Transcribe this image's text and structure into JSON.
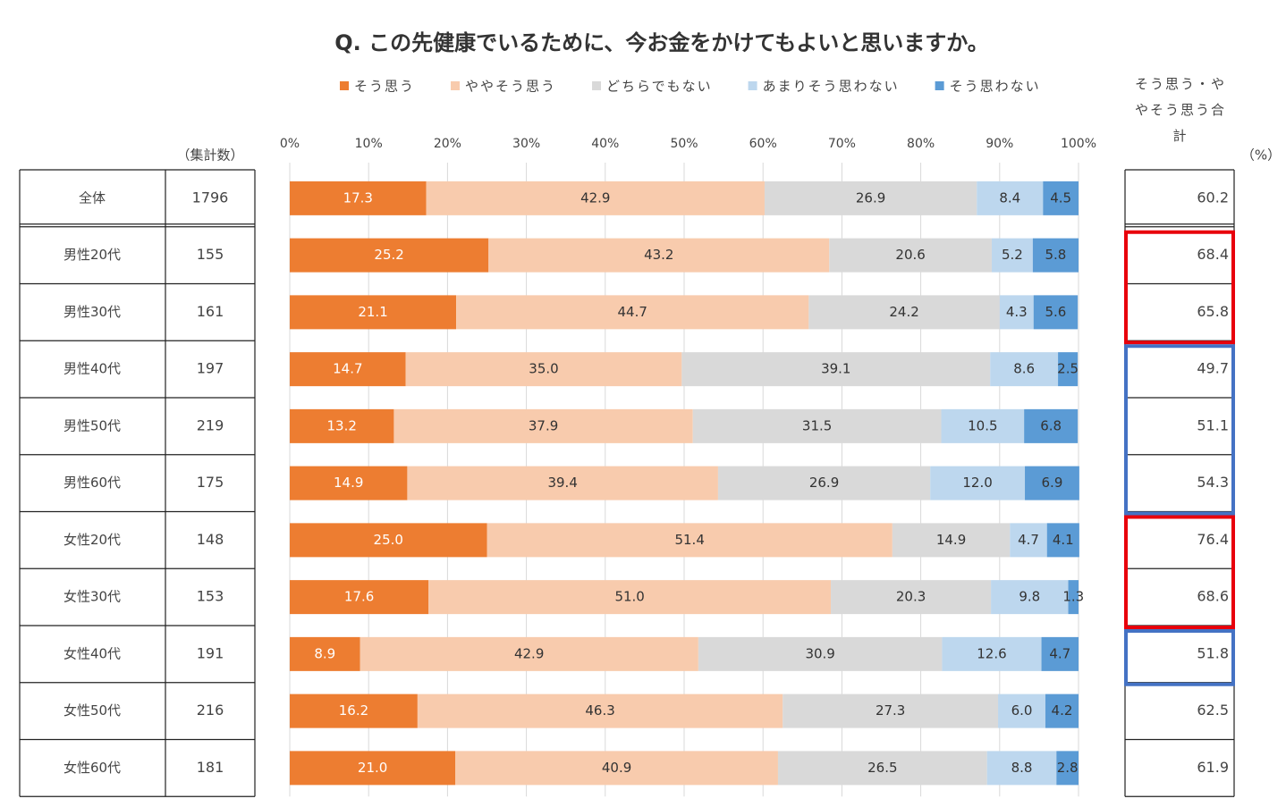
{
  "chart_data": {
    "type": "stacked-bar-100",
    "title": "Q. この先健康でいるために、今お金をかけてもよいと思いますか。",
    "count_header": "（集計数）",
    "total_header": "そう思う・ややそう思う合計",
    "unit_label": "（%）",
    "categories": [
      "全体",
      "男性20代",
      "男性30代",
      "男性40代",
      "男性50代",
      "男性60代",
      "女性20代",
      "女性30代",
      "女性40代",
      "女性50代",
      "女性60代"
    ],
    "counts": [
      1796,
      155,
      161,
      197,
      219,
      175,
      148,
      153,
      191,
      216,
      181
    ],
    "totals": [
      60.2,
      68.4,
      65.8,
      49.7,
      51.1,
      54.3,
      76.4,
      68.6,
      51.8,
      62.5,
      61.9
    ],
    "xlim": [
      0,
      100
    ],
    "xticks": [
      {
        "value": 0,
        "label": "0%"
      },
      {
        "value": 10,
        "label": "10%"
      },
      {
        "value": 20,
        "label": "20%"
      },
      {
        "value": 30,
        "label": "30%"
      },
      {
        "value": 40,
        "label": "40%"
      },
      {
        "value": 50,
        "label": "50%"
      },
      {
        "value": 60,
        "label": "60%"
      },
      {
        "value": 70,
        "label": "70%"
      },
      {
        "value": 80,
        "label": "80%"
      },
      {
        "value": 90,
        "label": "90%"
      },
      {
        "value": 100,
        "label": "100%"
      }
    ],
    "grid": true,
    "series": [
      {
        "name": "そう思う",
        "color": "#ed7d31",
        "values": [
          17.3,
          25.2,
          21.1,
          14.7,
          13.2,
          14.9,
          25.0,
          17.6,
          8.9,
          16.2,
          21.0
        ],
        "value_labels": [
          "17.3",
          "25.2",
          "21.1",
          "14.7",
          "13.2",
          "14.9",
          "25.0",
          "17.6",
          "8.9",
          "16.2",
          "21.0"
        ]
      },
      {
        "name": "ややそう思う",
        "color": "#f8cbad",
        "values": [
          42.9,
          43.2,
          44.7,
          35.0,
          37.9,
          39.4,
          51.4,
          51.0,
          42.9,
          46.3,
          40.9
        ],
        "value_labels": [
          "42.9",
          "43.2",
          "44.7",
          "35.0",
          "37.9",
          "39.4",
          "51.4",
          "51.0",
          "42.9",
          "46.3",
          "40.9"
        ]
      },
      {
        "name": "どちらでもない",
        "color": "#d9d9d9",
        "values": [
          26.9,
          20.6,
          24.2,
          39.1,
          31.5,
          26.9,
          14.9,
          20.3,
          30.9,
          27.3,
          26.5
        ],
        "value_labels": [
          "26.9",
          "20.6",
          "24.2",
          "39.1",
          "31.5",
          "26.9",
          "14.9",
          "20.3",
          "30.9",
          "27.3",
          "26.5"
        ]
      },
      {
        "name": "あまりそう思わない",
        "color": "#bdd7ee",
        "values": [
          8.4,
          5.2,
          4.3,
          8.6,
          10.5,
          12.0,
          4.7,
          9.8,
          12.6,
          6.0,
          8.8
        ],
        "value_labels": [
          "8.4",
          "5.2",
          "4.3",
          "8.6",
          "10.5",
          "12.0",
          "4.7",
          "9.8",
          "12.6",
          "6.0",
          "8.8"
        ]
      },
      {
        "name": "そう思わない",
        "color": "#5b9bd5",
        "values": [
          4.5,
          5.8,
          5.6,
          2.5,
          6.8,
          6.9,
          4.1,
          1.3,
          4.7,
          4.2,
          2.8
        ],
        "value_labels": [
          "4.5",
          "5.8",
          "5.6",
          "2.5",
          "6.8",
          "6.9",
          "4.1",
          "1.3",
          "4.7",
          "4.2",
          "2.8"
        ]
      }
    ]
  }
}
